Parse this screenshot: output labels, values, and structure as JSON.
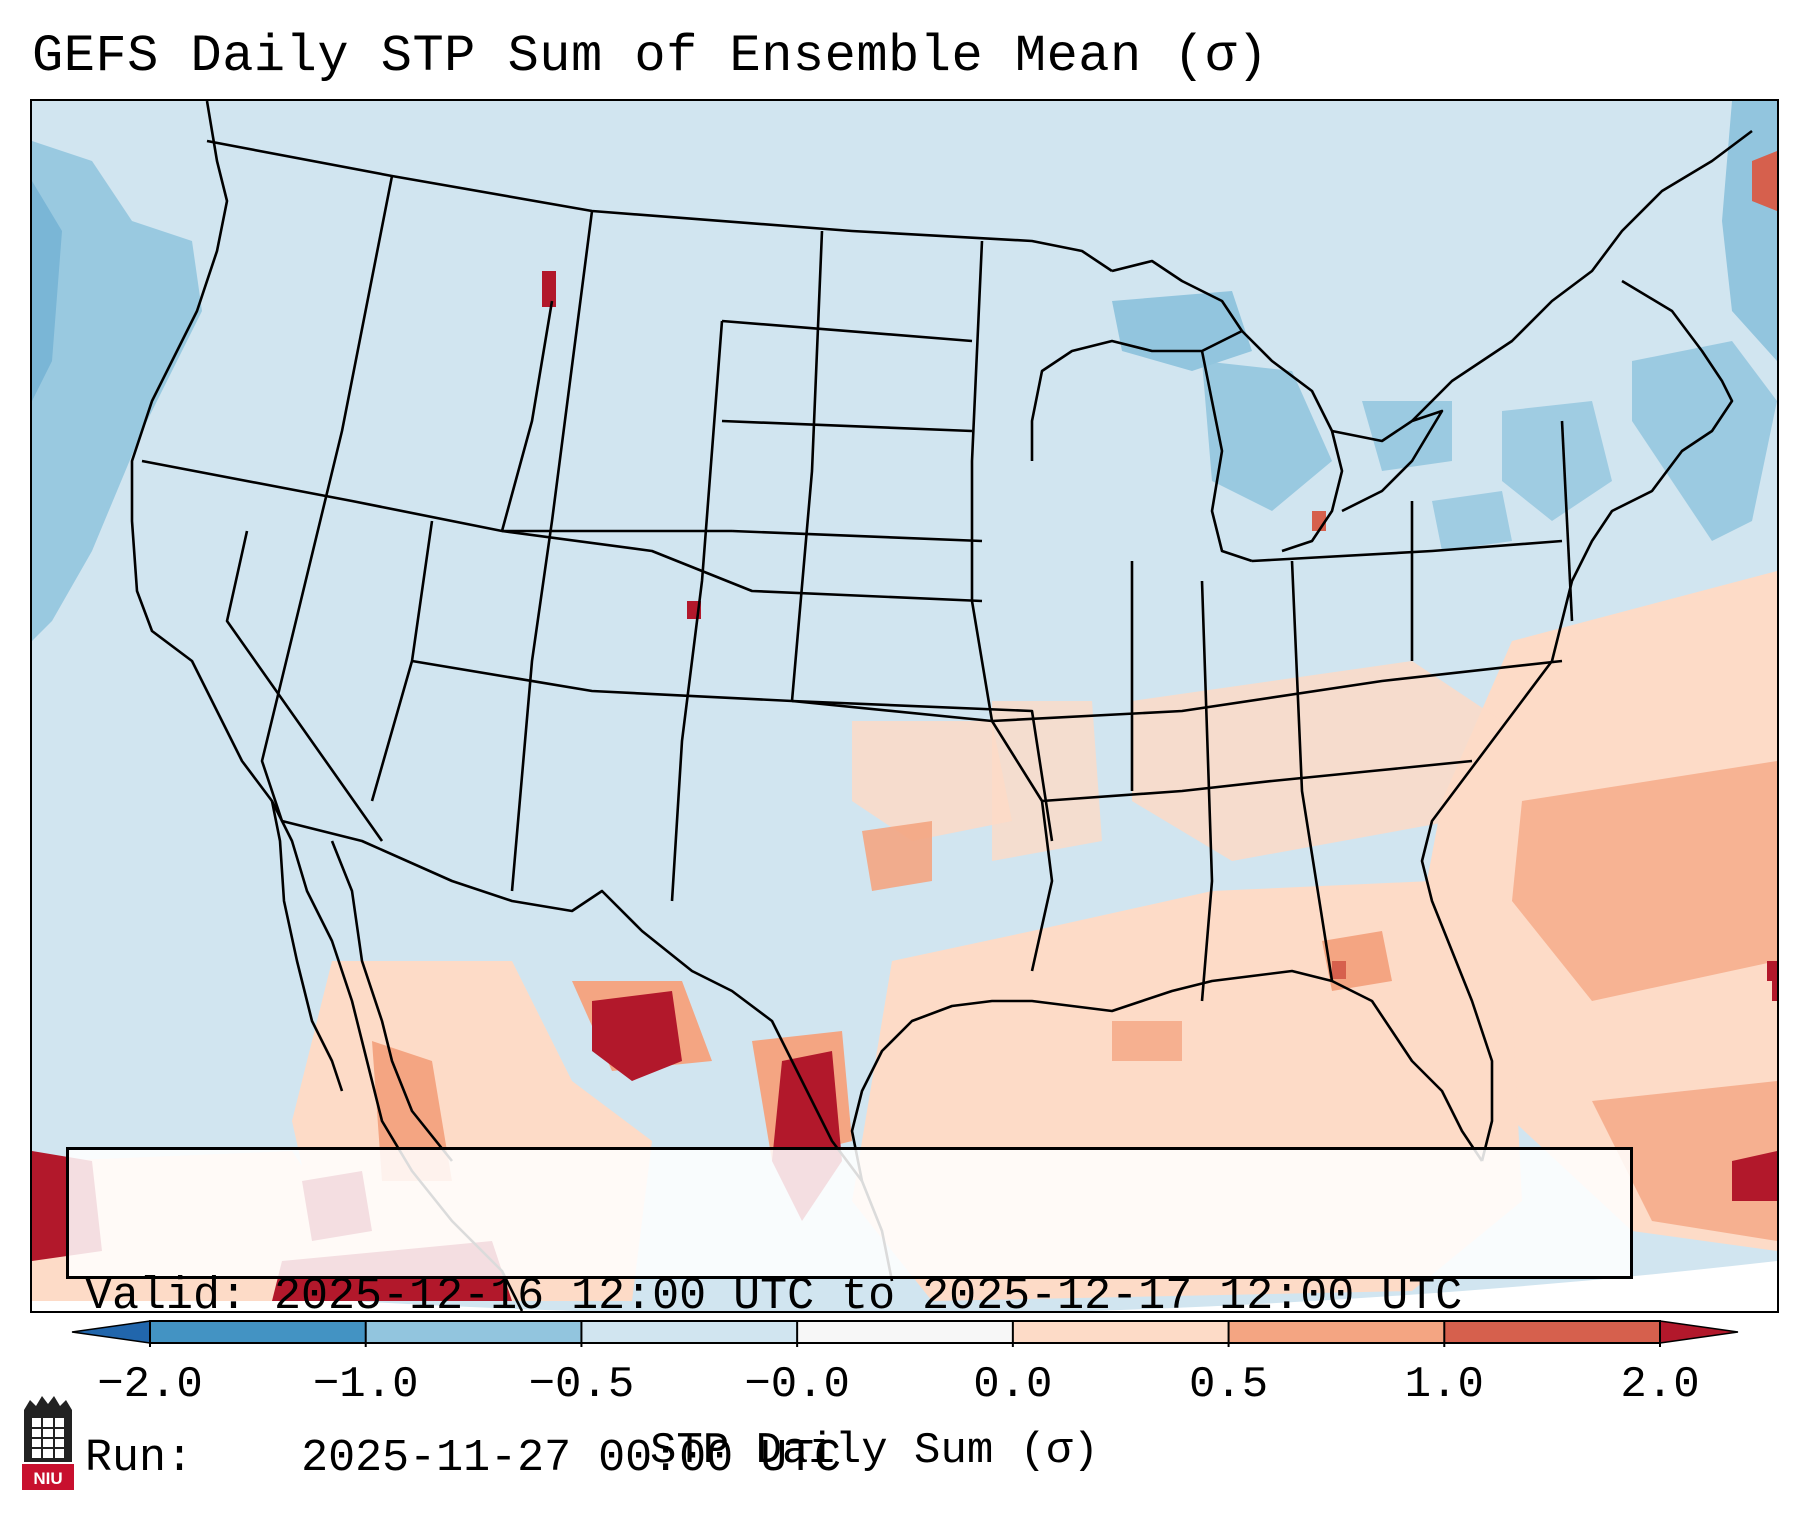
{
  "title": "GEFS Daily STP Sum of Ensemble Mean (σ)",
  "info": {
    "valid_label": "Valid:",
    "valid_value": "2025-12-16 12:00 UTC to 2025-12-17 12:00 UTC",
    "run_label": "Run:",
    "run_value": "2025-11-27 00:00 UTC"
  },
  "colorbar": {
    "label": "STP Daily Sum (σ)",
    "ticks": [
      "−2.0",
      "−1.0",
      "−0.5",
      "−0.0",
      "0.0",
      "0.5",
      "1.0",
      "2.0"
    ],
    "bins": [
      {
        "range": "<-2.0",
        "color": "#2166ac"
      },
      {
        "range": "-2.0 to -1.0",
        "color": "#4393c3"
      },
      {
        "range": "-1.0 to -0.5",
        "color": "#92c5de"
      },
      {
        "range": "-0.5 to -0.0",
        "color": "#d1e5f0"
      },
      {
        "range": "-0.0 to 0.0",
        "color": "#f7f7f7"
      },
      {
        "range": "0.0 to 0.5",
        "color": "#fddbc7"
      },
      {
        "range": "0.5 to 1.0",
        "color": "#f4a582"
      },
      {
        "range": "1.0 to 2.0",
        "color": "#d6604d"
      },
      {
        "range": ">2.0",
        "color": "#b2182b"
      }
    ]
  },
  "logo": {
    "text": "NIU"
  },
  "map": {
    "background_color": "#d1e5f0",
    "region": "CONUS, northern Mexico, Gulf of Mexico, western Atlantic"
  }
}
